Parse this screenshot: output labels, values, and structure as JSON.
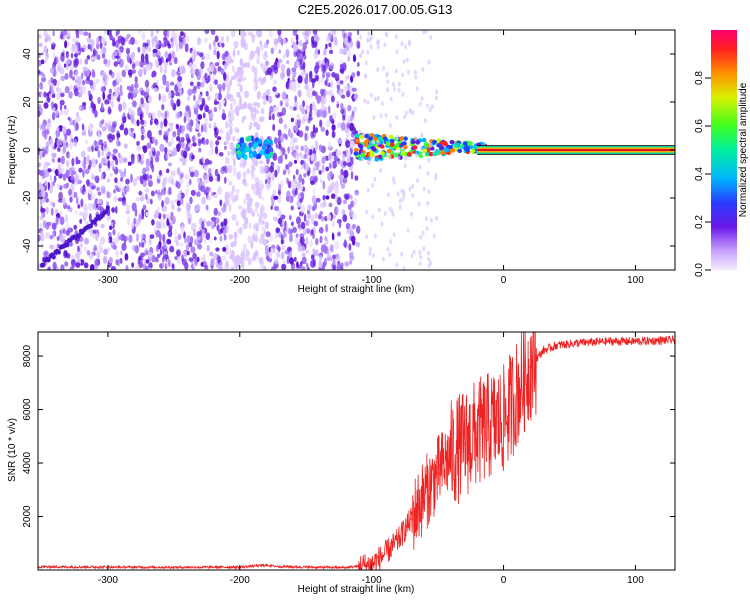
{
  "figure_title": "C2E5.2026.017.00.05.G13",
  "colors": {
    "snr_line": "#ee2222",
    "background": "#ffffff",
    "axes": "#000000",
    "carrier": "#e01020"
  },
  "chart_data": [
    {
      "type": "heatmap",
      "title": "C2E5.2026.017.00.05.G13",
      "xlabel": "Height of straight line (km)",
      "ylabel": "Frequency (Hz)",
      "xlim": [
        -353,
        130
      ],
      "ylim": [
        -50,
        50
      ],
      "xticks": [
        -300,
        -200,
        -100,
        0,
        100
      ],
      "yticks": [
        -40,
        -20,
        0,
        20,
        40
      ],
      "grid": false,
      "colorbar": {
        "label": "Normalized spectral amplitude",
        "range": [
          0,
          1
        ],
        "ticks": [
          "0.0",
          "0.2",
          "0.4",
          "0.6",
          "0.8"
        ],
        "colormap": [
          "#f0e0ff",
          "#c090ff",
          "#6020e0",
          "#2040ff",
          "#00c0ff",
          "#00ff80",
          "#c0ff00",
          "#ffa000",
          "#ff2020",
          "#ff0060"
        ]
      },
      "features": {
        "noise_region_x": [
          -353,
          -110
        ],
        "carrier_frequency_hz": 0,
        "carrier_x": [
          -110,
          130
        ],
        "blob_center": {
          "x": -190,
          "y": 1
        },
        "diagonal_trace": {
          "x": [
            -350,
            -300
          ],
          "y": [
            -48,
            -25
          ]
        }
      }
    },
    {
      "type": "line",
      "title": "",
      "xlabel": "Height of straight line (km)",
      "ylabel": "SNR (10 * v/v)",
      "xlim": [
        -353,
        130
      ],
      "ylim": [
        0,
        8900
      ],
      "xticks": [
        -300,
        -200,
        -100,
        0,
        100
      ],
      "yticks": [
        2000,
        4000,
        6000,
        8000
      ],
      "grid": false,
      "series": [
        {
          "color": "#ee2222",
          "x": [
            -353,
            -300,
            -250,
            -200,
            -180,
            -170,
            -150,
            -120,
            -100,
            -90,
            -80,
            -70,
            -60,
            -50,
            -40,
            -30,
            -20,
            -10,
            0,
            10,
            20,
            30,
            40,
            60,
            80,
            100,
            130
          ],
          "y": [
            120,
            110,
            100,
            110,
            180,
            130,
            110,
            90,
            200,
            600,
            1100,
            1900,
            2800,
            3600,
            4300,
            4700,
            5100,
            5400,
            5600,
            6600,
            7600,
            8200,
            8400,
            8500,
            8550,
            8550,
            8600
          ]
        }
      ]
    }
  ]
}
